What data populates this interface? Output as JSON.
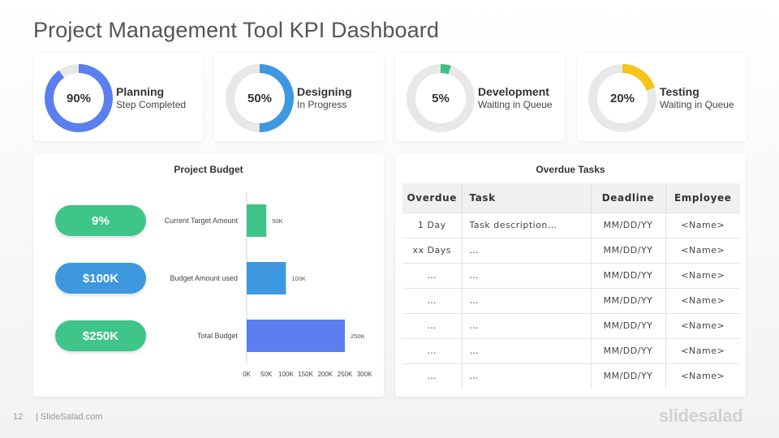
{
  "title": "Project Management Tool KPI Dashboard",
  "kpis": [
    {
      "percent_label": "90%",
      "value": 0.9,
      "name": "Planning",
      "status": "Step Completed",
      "color": "#5b7fef"
    },
    {
      "percent_label": "50%",
      "value": 0.5,
      "name": "Designing",
      "status": "In Progress",
      "color": "#3d98e0"
    },
    {
      "percent_label": "5%",
      "value": 0.05,
      "name": "Development",
      "status": "Waiting in Queue",
      "color": "#3fbf7f"
    },
    {
      "percent_label": "20%",
      "value": 0.2,
      "name": "Testing",
      "status": "Waiting in Queue",
      "color": "#f5c51a"
    }
  ],
  "donut_track_color": "#e8e8e8",
  "budget": {
    "title": "Project Budget",
    "pills": [
      {
        "label": "9%",
        "color": "#3fc48a"
      },
      {
        "label": "$100K",
        "color": "#3d98e0"
      },
      {
        "label": "$250K",
        "color": "#3fc48a"
      }
    ]
  },
  "chart_data": {
    "type": "bar",
    "orientation": "horizontal",
    "categories": [
      "Current Target Amount",
      "Budget Amount used",
      "Total Budget"
    ],
    "values": [
      50,
      100,
      250
    ],
    "data_labels": [
      "50K",
      "100K",
      "250K"
    ],
    "colors": [
      "#3fc48a",
      "#3d98e0",
      "#5b7fef"
    ],
    "xlim": [
      0,
      300
    ],
    "xticks": [
      "0K",
      "50K",
      "100K",
      "150K",
      "200K",
      "250K",
      "300K"
    ],
    "grid": false
  },
  "overdue": {
    "title": "Overdue Tasks",
    "columns": [
      "Overdue",
      "Task",
      "Deadline",
      "Employee"
    ],
    "rows": [
      [
        "1 Day",
        "Task description…",
        "MM/DD/YY",
        "<Name>"
      ],
      [
        "xx Days",
        "…",
        "MM/DD/YY",
        "<Name>"
      ],
      [
        "…",
        "…",
        "MM/DD/YY",
        "<Name>"
      ],
      [
        "…",
        "…",
        "MM/DD/YY",
        "<Name>"
      ],
      [
        "…",
        "…",
        "MM/DD/YY",
        "<Name>"
      ],
      [
        "…",
        "…",
        "MM/DD/YY",
        "<Name>"
      ],
      [
        "…",
        "…",
        "MM/DD/YY",
        "<Name>"
      ]
    ]
  },
  "footer": {
    "page_number": "12",
    "site": "| SlideSalad.com",
    "brand": "slidesalad"
  }
}
